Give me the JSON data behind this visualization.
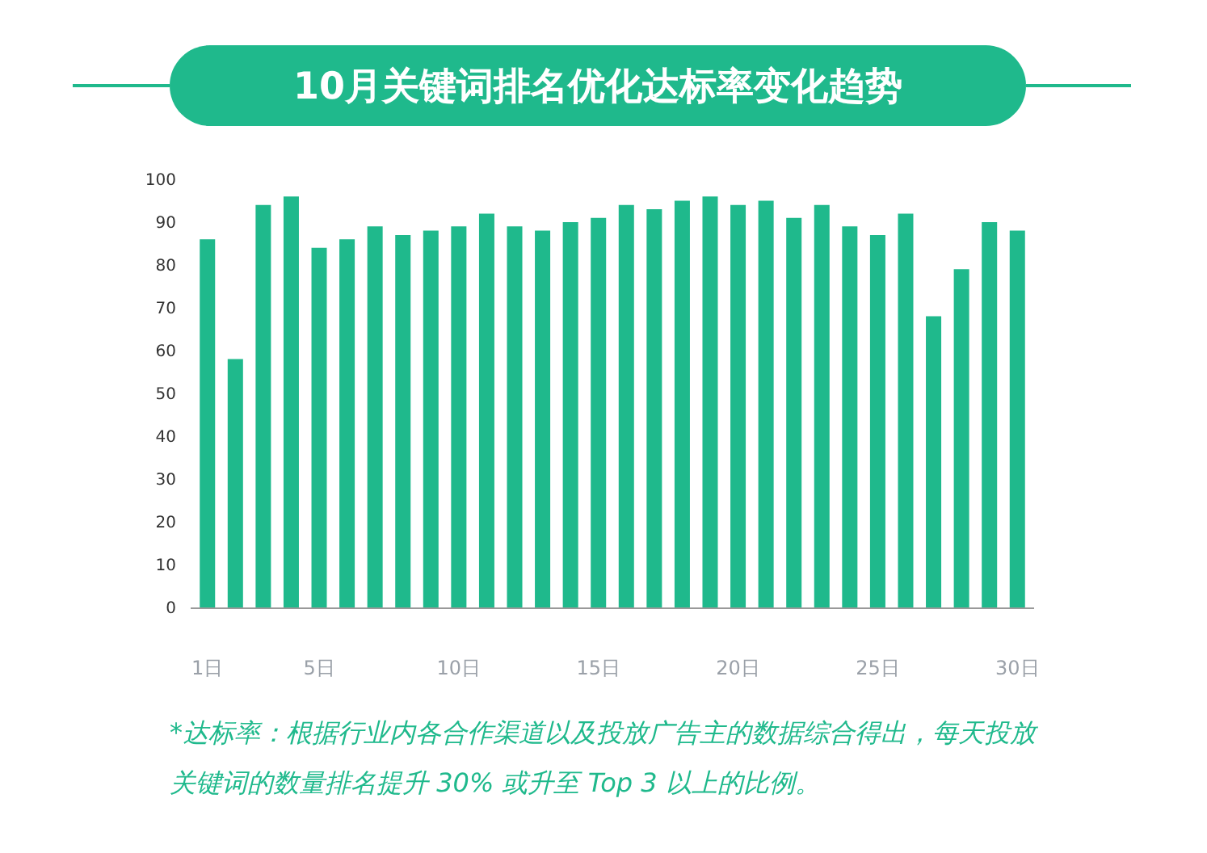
{
  "chart_data": {
    "type": "bar",
    "title": "10月关键词排名优化达标率变化趋势",
    "categories": [
      "1日",
      null,
      null,
      null,
      "5日",
      null,
      null,
      null,
      null,
      "10日",
      null,
      null,
      null,
      null,
      "15日",
      null,
      null,
      null,
      null,
      "20日",
      null,
      null,
      null,
      null,
      "25日",
      null,
      null,
      null,
      null,
      "30日"
    ],
    "values": [
      86,
      58,
      94,
      96,
      84,
      86,
      89,
      87,
      88,
      89,
      92,
      89,
      88,
      90,
      91,
      94,
      93,
      95,
      96,
      94,
      95,
      91,
      94,
      89,
      87,
      92,
      68,
      79,
      90,
      88
    ],
    "color": "#1fb98c",
    "ylim": [
      0,
      100
    ],
    "yticks": [
      0,
      10,
      20,
      30,
      40,
      50,
      60,
      70,
      80,
      90,
      100
    ],
    "grid": false,
    "annotations": [
      "*达标率：根据行业内各合作渠道以及投放广告主的数据综合得出，每天投放关键词的数量排名提升 30% 或升至 Top 3 以上的比例。"
    ]
  }
}
